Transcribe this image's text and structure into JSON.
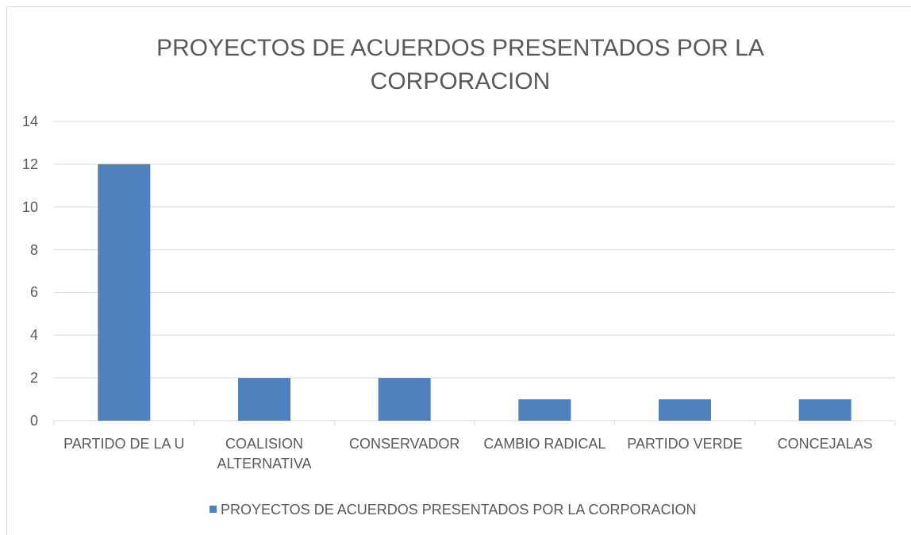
{
  "chart_data": {
    "type": "bar",
    "title": "PROYECTOS DE ACUERDOS PRESENTADOS POR LA CORPORACION",
    "categories": [
      "PARTIDO DE LA U",
      "COALISION ALTERNATIVA",
      "CONSERVADOR",
      "CAMBIO RADICAL",
      "PARTIDO VERDE",
      "CONCEJALAS"
    ],
    "series": [
      {
        "name": "PROYECTOS DE ACUERDOS PRESENTADOS POR LA CORPORACION",
        "color": "#4f81bd",
        "values": [
          12,
          2,
          2,
          1,
          1,
          1
        ]
      }
    ],
    "ylim": [
      0,
      14
    ],
    "yticks": [
      0,
      2,
      4,
      6,
      8,
      10,
      12,
      14
    ],
    "grid": true,
    "legend": "bottom"
  }
}
